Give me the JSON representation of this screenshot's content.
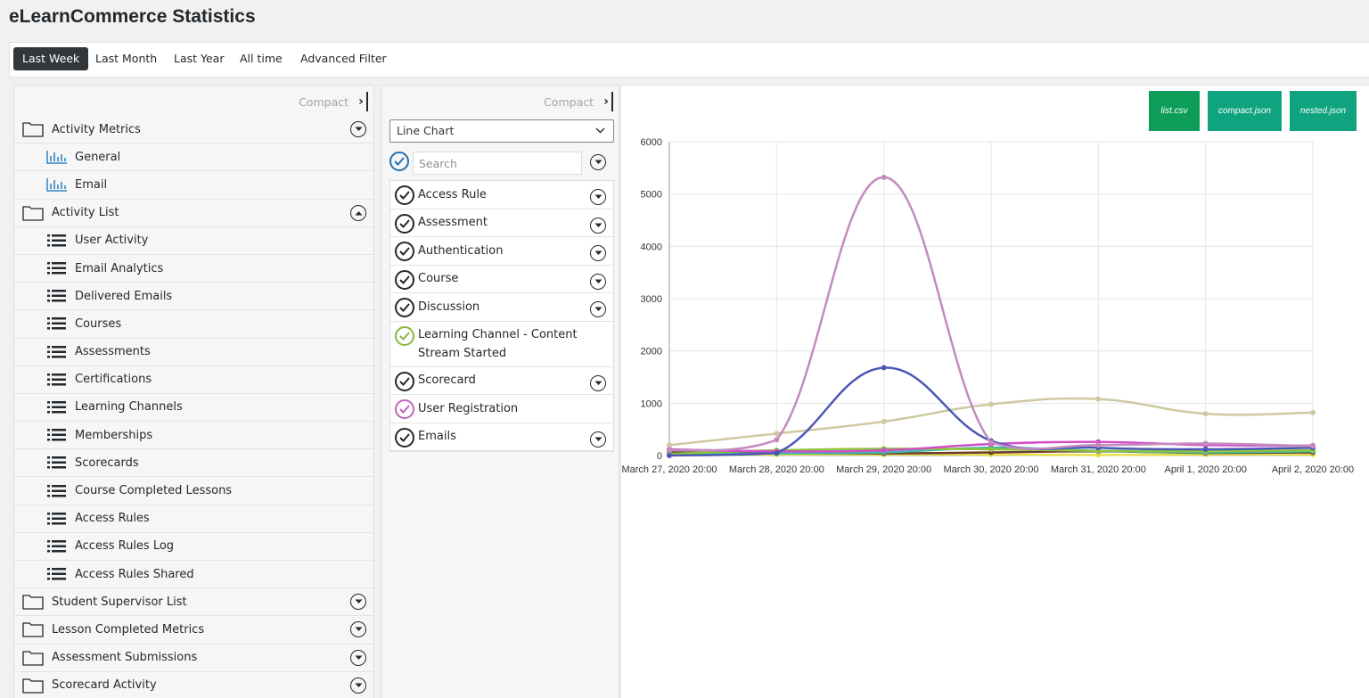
{
  "page": {
    "title": "eLearnCommerce Statistics"
  },
  "tabs": [
    {
      "label": "Last Week",
      "active": true
    },
    {
      "label": "Last Month"
    },
    {
      "label": "Last Year"
    },
    {
      "label": "All time"
    },
    {
      "label": "Advanced Filter"
    }
  ],
  "sidebar": {
    "compact_label": "Compact",
    "groups": [
      {
        "label": "Activity Metrics",
        "expanded": false
      },
      {
        "label": "General",
        "child": true,
        "icon": "bar-chart-icon"
      },
      {
        "label": "Email",
        "child": true,
        "icon": "bar-chart-icon"
      },
      {
        "label": "Activity List",
        "expanded": true
      },
      {
        "label": "User Activity",
        "child": true,
        "icon": "list-icon"
      },
      {
        "label": "Email Analytics",
        "child": true,
        "icon": "list-icon"
      },
      {
        "label": "Delivered Emails",
        "child": true,
        "icon": "list-icon"
      },
      {
        "label": "Courses",
        "child": true,
        "icon": "list-icon"
      },
      {
        "label": "Assessments",
        "child": true,
        "icon": "list-icon"
      },
      {
        "label": "Certifications",
        "child": true,
        "icon": "list-icon"
      },
      {
        "label": "Learning Channels",
        "child": true,
        "icon": "list-icon"
      },
      {
        "label": "Memberships",
        "child": true,
        "icon": "list-icon"
      },
      {
        "label": "Scorecards",
        "child": true,
        "icon": "list-icon"
      },
      {
        "label": "Course Completed Lessons",
        "child": true,
        "icon": "list-icon"
      },
      {
        "label": "Access Rules",
        "child": true,
        "icon": "list-icon"
      },
      {
        "label": "Access Rules Log",
        "child": true,
        "icon": "list-icon"
      },
      {
        "label": "Access Rules Shared",
        "child": true,
        "icon": "list-icon"
      },
      {
        "label": "Student Supervisor List",
        "expanded": false
      },
      {
        "label": "Lesson Completed Metrics",
        "expanded": false
      },
      {
        "label": "Assessment Submissions",
        "expanded": false
      },
      {
        "label": "Scorecard Activity",
        "expanded": false
      }
    ]
  },
  "filters": {
    "compact_label": "Compact",
    "chart_type": "Line Chart",
    "search_placeholder": "Search",
    "items": [
      {
        "label": "Access Rule",
        "color": "#23282d",
        "toggle": true
      },
      {
        "label": "Assessment",
        "color": "#23282d",
        "toggle": true
      },
      {
        "label": "Authentication",
        "color": "#23282d",
        "toggle": true
      },
      {
        "label": "Course",
        "color": "#23282d",
        "toggle": true
      },
      {
        "label": "Discussion",
        "color": "#23282d",
        "toggle": true
      },
      {
        "label": "Learning Channel - Content Stream Started",
        "color": "#8ab63f",
        "toggle": false
      },
      {
        "label": "Scorecard",
        "color": "#23282d",
        "toggle": true
      },
      {
        "label": "User Registration",
        "color": "#c065b8",
        "toggle": false
      },
      {
        "label": "Emails",
        "color": "#23282d",
        "toggle": true
      }
    ]
  },
  "downloads": [
    {
      "label": "list.csv",
      "color": "#0d9d58"
    },
    {
      "label": "compact.json",
      "color": "#10a589"
    },
    {
      "label": "nested.json",
      "color": "#10a589"
    }
  ],
  "chart_data": {
    "type": "line",
    "x": [
      "March 27, 2020 20:00",
      "March 28, 2020 20:00",
      "March 29, 2020 20:00",
      "March 30, 2020 20:00",
      "March 31, 2020 20:00",
      "April 1, 2020 20:00",
      "April 2, 2020 20:00"
    ],
    "ylim": [
      0,
      6000
    ],
    "yticks": [
      0,
      1000,
      2000,
      3000,
      4000,
      5000,
      6000
    ],
    "grid": true,
    "series": [
      {
        "color": "#c48bbf",
        "values": [
          100,
          300,
          5320,
          250,
          200,
          230,
          180
        ]
      },
      {
        "color": "#4a57b5",
        "values": [
          0,
          50,
          1680,
          280,
          150,
          120,
          150
        ]
      },
      {
        "color": "#cfc9a2",
        "values": [
          200,
          420,
          650,
          980,
          1080,
          800,
          820
        ]
      },
      {
        "color": "#d14ec9",
        "values": [
          120,
          80,
          100,
          220,
          260,
          200,
          190
        ]
      },
      {
        "color": "#8cc63f",
        "values": [
          30,
          100,
          130,
          120,
          90,
          80,
          100
        ]
      },
      {
        "color": "#3fb6a8",
        "values": [
          20,
          40,
          60,
          150,
          90,
          60,
          80
        ]
      },
      {
        "color": "#6b3a2a",
        "values": [
          60,
          50,
          40,
          60,
          80,
          50,
          60
        ]
      },
      {
        "color": "#e8e04a",
        "values": [
          10,
          20,
          20,
          20,
          10,
          20,
          20
        ]
      }
    ]
  }
}
